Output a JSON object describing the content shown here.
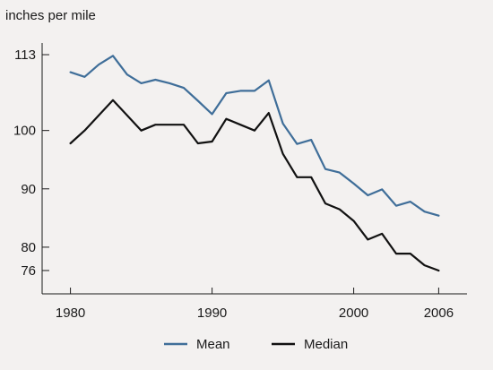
{
  "chart_data": {
    "type": "line",
    "unit_label": "inches per mile",
    "xlim": [
      1978,
      2008
    ],
    "ylim": [
      72,
      115
    ],
    "x_ticks": [
      1980,
      1990,
      2000,
      2006
    ],
    "y_ticks": [
      76,
      80,
      90,
      100,
      113
    ],
    "grid": false,
    "legend_position": "bottom-center",
    "series": [
      {
        "name": "Mean",
        "color": "#3f6e99",
        "x": [
          1980,
          1981,
          1982,
          1983,
          1984,
          1985,
          1986,
          1987,
          1988,
          1989,
          1990,
          1991,
          1992,
          1993,
          1994,
          1995,
          1996,
          1997,
          1998,
          1999,
          2000,
          2001,
          2002,
          2003,
          2004,
          2005,
          2006
        ],
        "y": [
          110,
          109.2,
          111.3,
          112.8,
          109.6,
          108.1,
          108.7,
          108.1,
          107.3,
          105.1,
          102.8,
          106.4,
          106.8,
          106.8,
          108.6,
          101.2,
          97.7,
          98.4,
          93.4,
          92.8,
          90.9,
          88.9,
          89.9,
          87.1,
          87.8,
          86.1,
          85.4
        ]
      },
      {
        "name": "Median",
        "color": "#111111",
        "x": [
          1980,
          1981,
          1982,
          1983,
          1984,
          1985,
          1986,
          1987,
          1988,
          1989,
          1990,
          1991,
          1992,
          1993,
          1994,
          1995,
          1996,
          1997,
          1998,
          1999,
          2000,
          2001,
          2002,
          2003,
          2004,
          2005,
          2006
        ],
        "y": [
          97.8,
          100,
          102.6,
          105.2,
          102.6,
          100,
          101,
          101,
          101,
          97.8,
          98.1,
          102,
          101,
          100,
          103,
          96,
          92,
          92,
          87.5,
          86.5,
          84.5,
          81.3,
          82.3,
          78.9,
          78.9,
          76.9,
          76
        ]
      }
    ]
  }
}
